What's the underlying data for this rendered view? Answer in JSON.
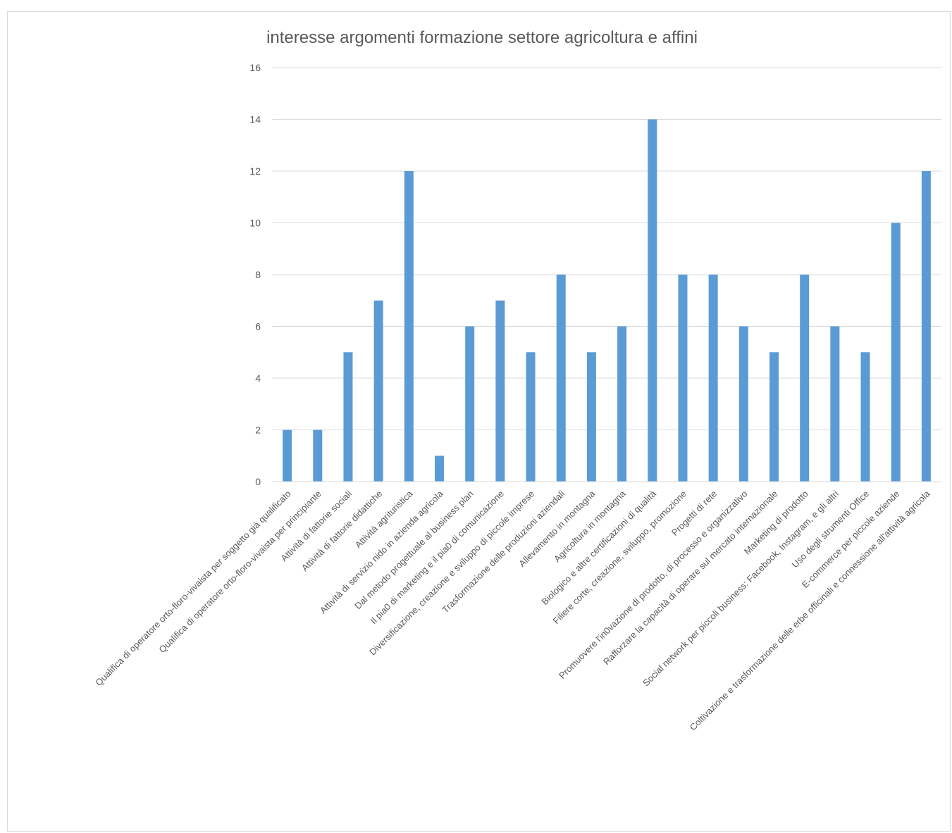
{
  "chart_data": {
    "type": "bar",
    "title": "interesse argomenti formazione settore agricoltura e affini",
    "xlabel": "",
    "ylabel": "",
    "ylim": [
      0,
      16
    ],
    "yticks": [
      0,
      2,
      4,
      6,
      8,
      10,
      12,
      14,
      16
    ],
    "grid": true,
    "legend": "none",
    "bar_color": "#5b9bd5",
    "categories": [
      "Qualifica di operatore orto-floro-vivaista per soggetto già qualificato",
      "Qualifica di operatore orto-floro-vivaista per principiante",
      "Attività di fattorie sociali",
      "Attività di fattorie didattiche",
      "Attività agrituristica",
      "Attività di servizio nido in azienda agricola",
      "Dal metodo progettuale al business plan",
      "Il pia0 di marketing e il pia0 di comunicazione",
      "Diversificazione, creazione e sviluppo di piccole imprese",
      "Trasformazione delle produzioni aziendali",
      "Allevamento in montagna",
      "Agricoltura in montagna",
      "Biologico e altre certificazioni di qualità",
      "Filiere corte, creazione, sviluppo, promozione",
      "Progetti di rete",
      "Promuovere l'in0vazione di prodotto, di processo e organizzativo",
      "Rafforzare la capacità di operare sul mercato internazionale",
      "Marketing di prodotto",
      "Social network per piccoli business: Facebook, Instagram, e gli altri",
      "Uso degli strumenti Office",
      "E-commerce per piccole aziende",
      "Coltivazione e trasformazione delle erbe officinali e connessione all'attività agricola"
    ],
    "values": [
      2,
      2,
      5,
      7,
      12,
      1,
      6,
      7,
      5,
      8,
      5,
      6,
      14,
      8,
      8,
      6,
      5,
      8,
      6,
      5,
      10,
      12
    ]
  }
}
